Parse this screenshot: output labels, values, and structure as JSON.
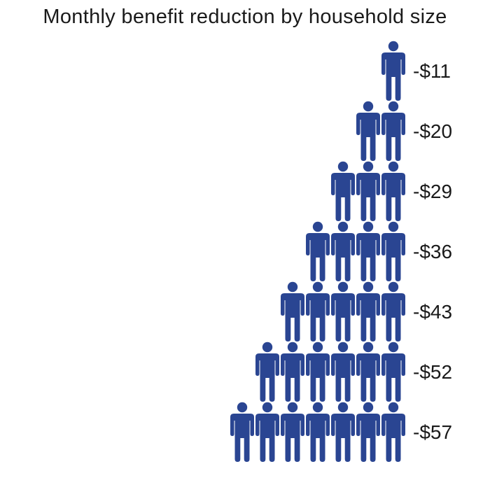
{
  "chart_data": {
    "type": "pictograph",
    "title": "Monthly benefit reduction by household size",
    "icon": "person-icon",
    "icon_color": "#2a4592",
    "rows": [
      {
        "household_size": 1,
        "label": "-$11",
        "value": -11
      },
      {
        "household_size": 2,
        "label": "-$20",
        "value": -20
      },
      {
        "household_size": 3,
        "label": "-$29",
        "value": -29
      },
      {
        "household_size": 4,
        "label": "-$36",
        "value": -36
      },
      {
        "household_size": 5,
        "label": "-$43",
        "value": -43
      },
      {
        "household_size": 6,
        "label": "-$52",
        "value": -52
      },
      {
        "household_size": 7,
        "label": "-$57",
        "value": -57
      }
    ]
  }
}
